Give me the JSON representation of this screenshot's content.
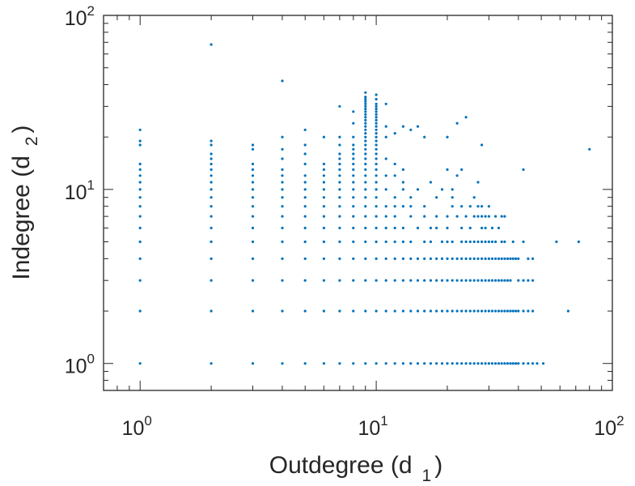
{
  "chart_data": {
    "type": "scatter",
    "title": "",
    "x_scale": "log",
    "y_scale": "log",
    "xlim": [
      0.7,
      100
    ],
    "ylim": [
      0.7,
      100
    ],
    "grid": false,
    "legend": "none",
    "marker_color": "#0072BD",
    "xlabel": {
      "main": "Outdegree (d",
      "sub": "1",
      "close": ")"
    },
    "ylabel": {
      "main": "Indegree (d",
      "sub": "2",
      "close": ")"
    },
    "x_ticks": [
      {
        "value": 1,
        "base": "10",
        "exp": "0"
      },
      {
        "value": 10,
        "base": "10",
        "exp": "1"
      },
      {
        "value": 100,
        "base": "10",
        "exp": "2"
      }
    ],
    "y_ticks": [
      {
        "value": 1,
        "base": "10",
        "exp": "0"
      },
      {
        "value": 10,
        "base": "10",
        "exp": "1"
      },
      {
        "value": 100,
        "base": "10",
        "exp": "2"
      }
    ],
    "columns": [
      {
        "x": 1,
        "y": [
          1,
          2,
          3,
          4,
          5,
          6,
          7,
          8,
          9,
          10,
          11,
          12,
          13,
          14,
          18,
          19,
          22
        ]
      },
      {
        "x": 2,
        "y": [
          1,
          2,
          3,
          4,
          5,
          6,
          7,
          8,
          9,
          10,
          11,
          12,
          13,
          14,
          15,
          16,
          18,
          19,
          68
        ]
      },
      {
        "x": 3,
        "y": [
          1,
          2,
          3,
          4,
          5,
          6,
          7,
          8,
          9,
          10,
          11,
          12,
          13,
          14,
          17,
          18
        ]
      },
      {
        "x": 4,
        "y": [
          1,
          2,
          3,
          4,
          5,
          6,
          7,
          8,
          9,
          10,
          11,
          12,
          13,
          15,
          17,
          20,
          42
        ]
      },
      {
        "x": 5,
        "y": [
          1,
          2,
          3,
          4,
          5,
          6,
          7,
          8,
          9,
          10,
          11,
          12,
          14,
          16,
          18,
          22
        ]
      },
      {
        "x": 6,
        "y": [
          1,
          2,
          3,
          4,
          5,
          6,
          7,
          8,
          9,
          10,
          11,
          12,
          13,
          14,
          20
        ]
      },
      {
        "x": 7,
        "y": [
          1,
          2,
          3,
          4,
          5,
          6,
          7,
          8,
          9,
          10,
          11,
          12,
          13,
          14,
          15,
          16,
          18,
          20,
          30
        ]
      },
      {
        "x": 8,
        "y": [
          1,
          2,
          3,
          4,
          5,
          6,
          7,
          8,
          9,
          10,
          11,
          12,
          13,
          14,
          15,
          16,
          17,
          18,
          20,
          24,
          28
        ]
      },
      {
        "x": 9,
        "y": [
          1,
          2,
          3,
          4,
          5,
          6,
          7,
          8,
          9,
          10,
          11,
          12,
          13,
          14,
          15,
          16,
          17,
          18,
          19,
          20,
          21,
          22,
          23,
          24,
          25,
          26,
          27,
          28,
          29,
          30,
          31,
          32,
          33,
          34,
          36
        ]
      },
      {
        "x": 10,
        "y": [
          1,
          2,
          3,
          4,
          5,
          6,
          7,
          8,
          9,
          10,
          11,
          12,
          13,
          14,
          15,
          16,
          17,
          18,
          19,
          20,
          21,
          22,
          23,
          24,
          25,
          26,
          27,
          28,
          29,
          30,
          31,
          33,
          35
        ]
      },
      {
        "x": 11,
        "y": [
          1,
          2,
          3,
          4,
          5,
          6,
          7,
          8,
          10,
          12,
          15,
          20,
          23,
          31
        ]
      },
      {
        "x": 12,
        "y": [
          1,
          2,
          3,
          4,
          5,
          6,
          7,
          8,
          9,
          12,
          14,
          21
        ]
      },
      {
        "x": 13,
        "y": [
          1,
          2,
          3,
          4,
          5,
          6,
          8,
          10,
          11,
          13,
          23
        ]
      },
      {
        "x": 14,
        "y": [
          1,
          2,
          3,
          4,
          5,
          7,
          8,
          9,
          22
        ]
      },
      {
        "x": 15,
        "y": [
          1,
          2,
          3,
          4,
          6,
          10,
          23
        ]
      },
      {
        "x": 16,
        "y": [
          1,
          2,
          3,
          4,
          5,
          7,
          8,
          20
        ]
      },
      {
        "x": 17,
        "y": [
          1,
          2,
          3,
          4,
          5,
          6,
          11
        ]
      },
      {
        "x": 18,
        "y": [
          1,
          2,
          3,
          4,
          6,
          7,
          9
        ]
      },
      {
        "x": 19,
        "y": [
          1,
          2,
          3,
          4,
          5,
          10
        ]
      },
      {
        "x": 20,
        "y": [
          1,
          2,
          3,
          4,
          5,
          6,
          7,
          13,
          20
        ]
      },
      {
        "x": 21,
        "y": [
          1,
          2,
          3,
          4,
          5,
          8,
          9,
          10
        ]
      },
      {
        "x": 22,
        "y": [
          1,
          2,
          3,
          4,
          7,
          12,
          24
        ]
      },
      {
        "x": 23,
        "y": [
          1,
          2,
          3,
          4,
          5,
          6,
          8,
          13
        ]
      },
      {
        "x": 24,
        "y": [
          1,
          2,
          3,
          4,
          5,
          7,
          26
        ]
      },
      {
        "x": 25,
        "y": [
          1,
          2,
          3,
          4,
          5,
          6,
          8
        ]
      },
      {
        "x": 26,
        "y": [
          1,
          2,
          3,
          4,
          5,
          7,
          9
        ]
      },
      {
        "x": 27,
        "y": [
          1,
          2,
          3,
          4,
          5,
          7,
          8,
          11
        ]
      },
      {
        "x": 28,
        "y": [
          1,
          2,
          3,
          4,
          5,
          6,
          7,
          8,
          18
        ]
      },
      {
        "x": 29,
        "y": [
          1,
          2,
          3,
          4,
          5,
          6,
          7
        ]
      },
      {
        "x": 30,
        "y": [
          1,
          2,
          3,
          4,
          5,
          7,
          8
        ]
      },
      {
        "x": 31,
        "y": [
          1,
          2,
          3,
          4,
          5,
          6
        ]
      },
      {
        "x": 32,
        "y": [
          1,
          2,
          3,
          4,
          5,
          7
        ]
      },
      {
        "x": 33,
        "y": [
          1,
          2,
          3,
          4,
          6
        ]
      },
      {
        "x": 34,
        "y": [
          1,
          2,
          3,
          4,
          5,
          7
        ]
      },
      {
        "x": 35,
        "y": [
          1,
          2,
          3,
          4,
          5,
          7
        ]
      },
      {
        "x": 36,
        "y": [
          1,
          2,
          3,
          4
        ]
      },
      {
        "x": 37,
        "y": [
          1,
          2,
          3,
          4
        ]
      },
      {
        "x": 38,
        "y": [
          1,
          2,
          4,
          5
        ]
      },
      {
        "x": 39,
        "y": [
          1,
          2,
          4
        ]
      },
      {
        "x": 40,
        "y": [
          1,
          2,
          3,
          4
        ]
      },
      {
        "x": 42,
        "y": [
          1,
          2,
          3,
          5,
          13
        ]
      },
      {
        "x": 44,
        "y": [
          1,
          2,
          3,
          4
        ]
      },
      {
        "x": 46,
        "y": [
          1,
          2,
          3,
          4
        ]
      },
      {
        "x": 48,
        "y": [
          1
        ]
      },
      {
        "x": 51,
        "y": [
          1
        ]
      },
      {
        "x": 58,
        "y": [
          5
        ]
      },
      {
        "x": 65,
        "y": [
          2
        ]
      },
      {
        "x": 72,
        "y": [
          5
        ]
      },
      {
        "x": 80,
        "y": [
          17
        ]
      }
    ]
  }
}
